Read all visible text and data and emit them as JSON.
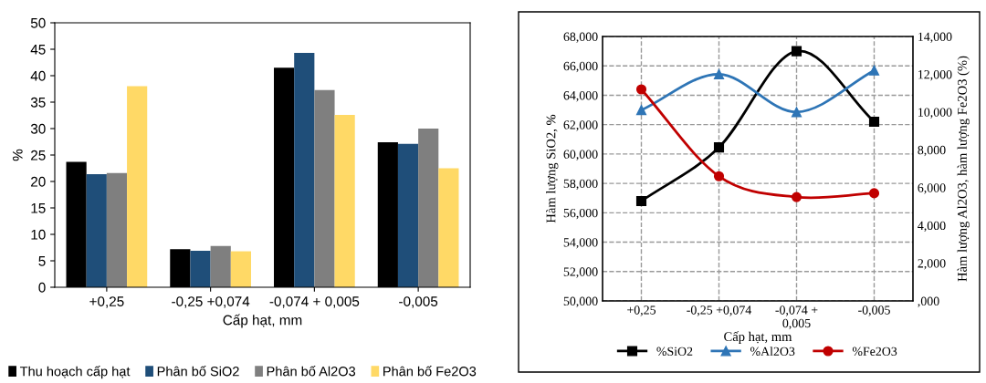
{
  "chart_data": [
    {
      "type": "bar",
      "xlabel": "Cấp hạt, mm",
      "ylabel": "%",
      "categories": [
        "+0,25",
        "-0,25 +0,074",
        "-0,074 + 0,005",
        "-0,005"
      ],
      "ylim": [
        0,
        50
      ],
      "yticks": [
        0,
        5,
        10,
        15,
        20,
        25,
        30,
        35,
        40,
        45,
        50
      ],
      "grid": false,
      "legend": "bottom",
      "series": [
        {
          "name": "Thu hoạch cấp hạt",
          "color": "#000000",
          "values": [
            23.7,
            7.2,
            41.5,
            27.4
          ]
        },
        {
          "name": "Phân bố SiO2",
          "color": "#1f4e79",
          "values": [
            21.4,
            6.9,
            44.3,
            27.1
          ]
        },
        {
          "name": "Phân bố Al2O3",
          "color": "#7f7f7f",
          "values": [
            21.6,
            7.8,
            37.3,
            30.0
          ]
        },
        {
          "name": "Phân bố Fe2O3",
          "color": "#ffd966",
          "values": [
            38.0,
            6.8,
            32.6,
            22.5
          ]
        }
      ]
    },
    {
      "type": "line",
      "xlabel": "Cấp hạt, mm",
      "ylabel": "Hàm lượng SiO2, %",
      "y2label": "Hàm lượng Al2O3, hàm lượng Fe2O3 (%)",
      "categories": [
        "+0,25",
        "-0,25 +0,074",
        "-0,074 + 0,005",
        "-0,005"
      ],
      "ylim": [
        50,
        68
      ],
      "yticks": [
        {
          "value": 50,
          "label": "50,000"
        },
        {
          "value": 52,
          "label": "52,000"
        },
        {
          "value": 54,
          "label": "54,000"
        },
        {
          "value": 56,
          "label": "56,000"
        },
        {
          "value": 58,
          "label": "58,000"
        },
        {
          "value": 60,
          "label": "60,000"
        },
        {
          "value": 62,
          "label": "62,000"
        },
        {
          "value": 64,
          "label": "64,000"
        },
        {
          "value": 66,
          "label": "66,000"
        },
        {
          "value": 68,
          "label": "68,000"
        }
      ],
      "y2lim": [
        0,
        14
      ],
      "y2ticks": [
        {
          "value": 0,
          "label": ",000"
        },
        {
          "value": 2,
          "label": "2,000"
        },
        {
          "value": 4,
          "label": "4,000"
        },
        {
          "value": 6,
          "label": "6,000"
        },
        {
          "value": 8,
          "label": "8,000"
        },
        {
          "value": 10,
          "label": "10,000"
        },
        {
          "value": 12,
          "label": "12,000"
        },
        {
          "value": 14,
          "label": "14,000"
        }
      ],
      "grid": true,
      "legend": "bottom",
      "line_style": "solid",
      "series": [
        {
          "name": "%SiO2",
          "color": "#000000",
          "marker": "square",
          "values": [
            56.8,
            60.45,
            67.0,
            62.2
          ]
        },
        {
          "name": "%Al2O3",
          "color": "#2e75b6",
          "marker": "triangle",
          "axis": "y2",
          "values": [
            10.1,
            12.0,
            10.0,
            12.2
          ]
        },
        {
          "name": "%Fe2O3",
          "color": "#c00000",
          "marker": "circle",
          "axis": "y2",
          "values": [
            11.2,
            6.6,
            5.5,
            5.7
          ]
        }
      ]
    }
  ]
}
